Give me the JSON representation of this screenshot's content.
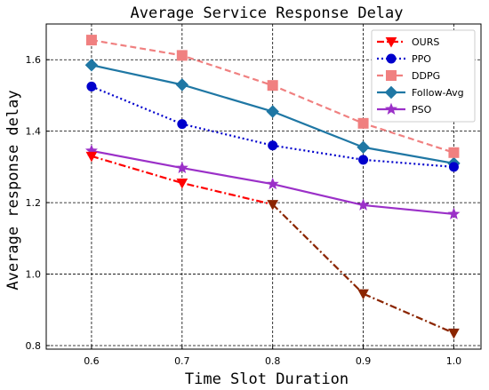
{
  "chart_data": {
    "type": "line",
    "title": "Average Service Response Delay",
    "xlabel": "Time Slot Duration",
    "ylabel": "Average response delay",
    "x": [
      0.6,
      0.7,
      0.8,
      0.9,
      1.0
    ],
    "x_tick_labels": [
      "0.6",
      "0.7",
      "0.8",
      "0.9",
      "1.0"
    ],
    "y_tick_labels": [
      "0.8",
      "1.0",
      "1.2",
      "1.4",
      "1.6"
    ],
    "y_ticks": [
      0.8,
      1.0,
      1.2,
      1.4,
      1.6
    ],
    "xlim": [
      0.55,
      1.03
    ],
    "ylim": [
      0.79,
      1.7
    ],
    "grid": true,
    "legend_position": "top-right",
    "series": [
      {
        "name": "OURS",
        "values": [
          1.33,
          1.255,
          1.195,
          0.945,
          0.835
        ],
        "color": "#ff0000",
        "tail_color": "#8b2500",
        "dash": "dashdot",
        "marker": "triangle-down"
      },
      {
        "name": "PPO",
        "values": [
          1.525,
          1.42,
          1.36,
          1.32,
          1.3
        ],
        "color": "#0000cc",
        "dash": "dotted",
        "marker": "circle"
      },
      {
        "name": "DDPG",
        "values": [
          1.655,
          1.612,
          1.528,
          1.422,
          1.34
        ],
        "color": "#f08080",
        "dash": "dashed",
        "marker": "square"
      },
      {
        "name": "Follow-Avg",
        "values": [
          1.585,
          1.53,
          1.455,
          1.355,
          1.31
        ],
        "color": "#1f77a4",
        "dash": "solid",
        "marker": "diamond"
      },
      {
        "name": "PSO",
        "values": [
          1.345,
          1.297,
          1.252,
          1.193,
          1.168
        ],
        "color": "#9b30c8",
        "dash": "solid",
        "marker": "star"
      }
    ]
  }
}
